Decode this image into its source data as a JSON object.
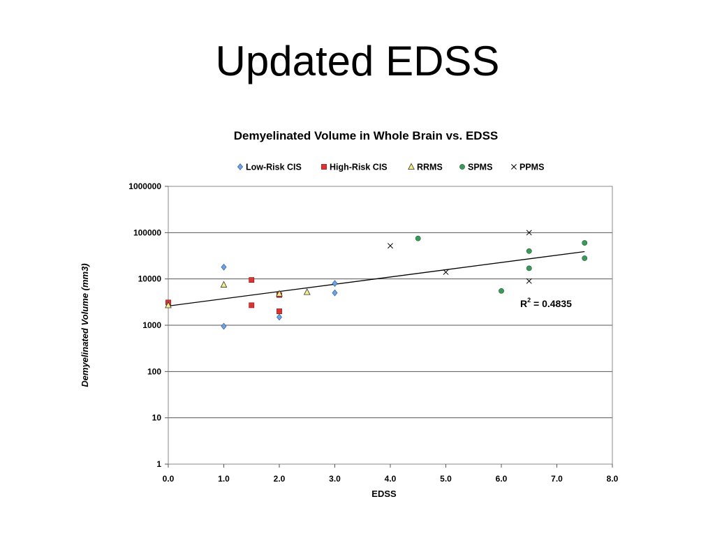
{
  "slide": {
    "title": "Updated EDSS"
  },
  "chart_data": {
    "type": "scatter",
    "title": "Demyelinated Volume in Whole Brain vs. EDSS",
    "xlabel": "EDSS",
    "ylabel": "Demyelinated Volume (mm3)",
    "xlim": [
      0,
      8
    ],
    "ylim": [
      1,
      1000000
    ],
    "yscale": "log",
    "x_ticks": [
      "0.0",
      "1.0",
      "2.0",
      "3.0",
      "4.0",
      "5.0",
      "6.0",
      "7.0",
      "8.0"
    ],
    "y_ticks": [
      "1",
      "10",
      "100",
      "1000",
      "10000",
      "100000",
      "1000000"
    ],
    "grid": "horizontal",
    "legend_position": "top",
    "series": [
      {
        "name": "Low-Risk CIS",
        "marker": "diamond",
        "color": "#6aa3e8",
        "points": [
          [
            1.0,
            18000
          ],
          [
            1.0,
            950
          ],
          [
            2.0,
            1500
          ],
          [
            3.0,
            8000
          ],
          [
            3.0,
            5000
          ]
        ]
      },
      {
        "name": "High-Risk CIS",
        "marker": "square",
        "color": "#dd3333",
        "points": [
          [
            0.0,
            3100
          ],
          [
            1.5,
            9500
          ],
          [
            1.5,
            2700
          ],
          [
            2.0,
            4500
          ],
          [
            2.0,
            2000
          ]
        ]
      },
      {
        "name": "RRMS",
        "marker": "triangle",
        "color": "#f3ef8a",
        "points": [
          [
            0.0,
            2700
          ],
          [
            1.0,
            7500
          ],
          [
            2.0,
            4800
          ],
          [
            2.5,
            5200
          ]
        ]
      },
      {
        "name": "SPMS",
        "marker": "circle",
        "color": "#3a9a5a",
        "points": [
          [
            4.5,
            75000
          ],
          [
            6.0,
            5500
          ],
          [
            6.5,
            40000
          ],
          [
            6.5,
            17000
          ],
          [
            7.5,
            60000
          ],
          [
            7.5,
            28000
          ]
        ]
      },
      {
        "name": "PPMS",
        "marker": "x",
        "color": "#000000",
        "points": [
          [
            4.0,
            52000
          ],
          [
            5.0,
            14000
          ],
          [
            6.5,
            100000
          ],
          [
            6.5,
            9000
          ]
        ]
      }
    ],
    "trendline": {
      "from": [
        0.0,
        2600
      ],
      "to": [
        7.5,
        39000
      ]
    },
    "annotation": {
      "r_label": "R",
      "r_sup": "2",
      "r_value": " = 0.4835"
    }
  }
}
